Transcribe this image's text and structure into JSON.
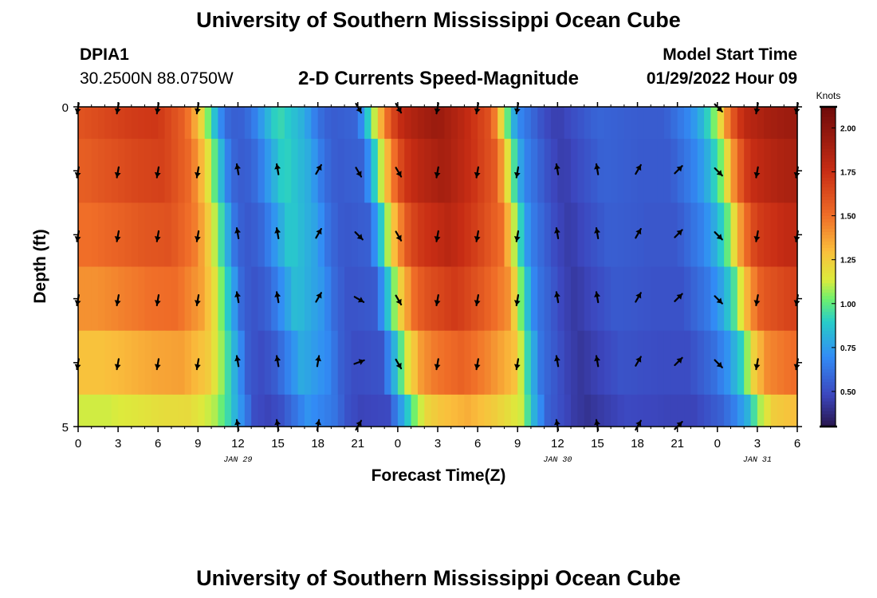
{
  "header": {
    "title_top": "University of Southern Mississippi Ocean Cube",
    "station": "DPIA1",
    "coords": "30.2500N  88.0750W",
    "subtitle": "2-D Currents Speed-Magnitude",
    "model_label": "Model Start Time",
    "model_time": "01/29/2022 Hour 09",
    "title_bottom": "University of Southern Mississippi Ocean Cube"
  },
  "chart_data": {
    "type": "heatmap",
    "xlabel": "Forecast Time(Z)",
    "ylabel": "Depth (ft)",
    "ylim": [
      0,
      5
    ],
    "y_ticks": [
      "0",
      "5"
    ],
    "x_ticks": [
      "0",
      "3",
      "6",
      "9",
      "12",
      "15",
      "18",
      "21",
      "0",
      "3",
      "6",
      "9",
      "12",
      "15",
      "18",
      "21",
      "0",
      "3",
      "6"
    ],
    "date_labels": [
      {
        "hour_index": 12,
        "text": "JAN 29"
      },
      {
        "hour_index": 36,
        "text": "JAN 30"
      },
      {
        "hour_index": 51,
        "text": "JAN 31"
      }
    ],
    "hours_total": 54,
    "colorbar": {
      "label": "Knots",
      "min": 0.3,
      "max": 2.12,
      "ticks": [
        "0.50",
        "0.75",
        "1.00",
        "1.25",
        "1.50",
        "1.75",
        "2.00"
      ],
      "tick_values": [
        0.5,
        0.75,
        1.0,
        1.25,
        1.5,
        1.75,
        2.0
      ]
    },
    "speed_profile_knots": [
      [
        0,
        1.6
      ],
      [
        2,
        1.65
      ],
      [
        4,
        1.7
      ],
      [
        6,
        1.72
      ],
      [
        8,
        1.55
      ],
      [
        9,
        1.3
      ],
      [
        10,
        0.95
      ],
      [
        11,
        0.6
      ],
      [
        12,
        0.55
      ],
      [
        13,
        0.62
      ],
      [
        15,
        0.95
      ],
      [
        17,
        0.8
      ],
      [
        18,
        0.62
      ],
      [
        19,
        0.55
      ],
      [
        21,
        0.58
      ],
      [
        22,
        1.0
      ],
      [
        23,
        1.45
      ],
      [
        24,
        1.75
      ],
      [
        25,
        1.85
      ],
      [
        27,
        1.95
      ],
      [
        29,
        1.8
      ],
      [
        31,
        1.6
      ],
      [
        32,
        1.1
      ],
      [
        33,
        0.7
      ],
      [
        35,
        0.5
      ],
      [
        36,
        0.45
      ],
      [
        37,
        0.5
      ],
      [
        39,
        0.58
      ],
      [
        42,
        0.55
      ],
      [
        44,
        0.55
      ],
      [
        46,
        0.7
      ],
      [
        47,
        0.85
      ],
      [
        48,
        1.1
      ],
      [
        49,
        1.55
      ],
      [
        50,
        1.8
      ],
      [
        52,
        1.9
      ],
      [
        54,
        1.95
      ]
    ],
    "depth_speed_factors": [
      1.0,
      0.97,
      0.92,
      0.85,
      0.75,
      0.62
    ],
    "arrows": {
      "hours": [
        0,
        3,
        6,
        9,
        12,
        15,
        18,
        21,
        24,
        27,
        30,
        33,
        36,
        39,
        42,
        45,
        48,
        51,
        54
      ],
      "depths": [
        0,
        1,
        2,
        3,
        4,
        5
      ],
      "directions_deg": [
        [
          190,
          190,
          190,
          190,
          null,
          null,
          null,
          150,
          150,
          190,
          190,
          190,
          null,
          null,
          null,
          null,
          135,
          190,
          190
        ],
        [
          190,
          190,
          190,
          190,
          350,
          350,
          30,
          150,
          150,
          190,
          190,
          190,
          350,
          350,
          30,
          45,
          135,
          190,
          190
        ],
        [
          190,
          190,
          190,
          190,
          350,
          350,
          30,
          135,
          150,
          190,
          190,
          190,
          350,
          350,
          30,
          45,
          135,
          190,
          190
        ],
        [
          190,
          190,
          190,
          190,
          350,
          350,
          30,
          120,
          150,
          190,
          190,
          190,
          350,
          350,
          30,
          45,
          135,
          190,
          190
        ],
        [
          190,
          190,
          190,
          190,
          350,
          350,
          10,
          70,
          150,
          190,
          190,
          190,
          350,
          350,
          30,
          45,
          135,
          190,
          190
        ],
        [
          null,
          null,
          null,
          null,
          350,
          350,
          10,
          30,
          null,
          null,
          null,
          null,
          350,
          350,
          30,
          45,
          null,
          null,
          null
        ]
      ]
    }
  }
}
